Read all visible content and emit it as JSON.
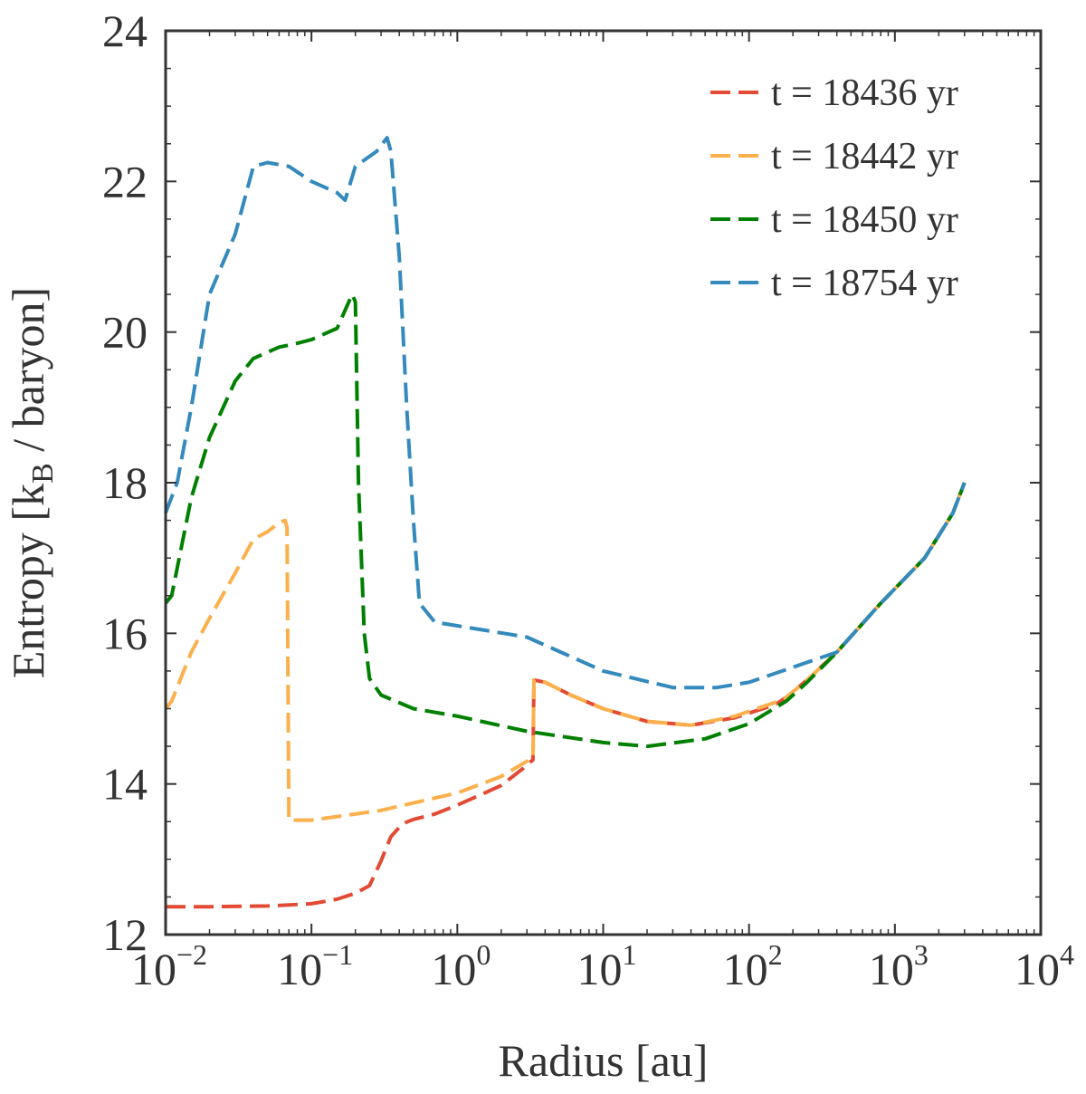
{
  "chart_data": {
    "type": "line",
    "title": "",
    "xlabel": "Radius [au]",
    "ylabel": {
      "prefix": "Entropy [k",
      "subscript": "B",
      "suffix": " / baryon]"
    },
    "xscale": "log",
    "xlim": [
      0.01,
      10000
    ],
    "ylim": [
      12,
      24
    ],
    "x_ticks": [
      {
        "value": 0.01,
        "base": "10",
        "exp": "−2"
      },
      {
        "value": 0.1,
        "base": "10",
        "exp": "−1"
      },
      {
        "value": 1,
        "base": "10",
        "exp": "0"
      },
      {
        "value": 10,
        "base": "10",
        "exp": "1"
      },
      {
        "value": 100,
        "base": "10",
        "exp": "2"
      },
      {
        "value": 1000,
        "base": "10",
        "exp": "3"
      },
      {
        "value": 10000,
        "base": "10",
        "exp": "4"
      }
    ],
    "y_ticks": [
      12,
      14,
      16,
      18,
      20,
      22,
      24
    ],
    "grid": false,
    "legend_position": "top-right",
    "series": [
      {
        "name": "t = 18436 yr",
        "color": "#e24a33",
        "points": [
          [
            0.01,
            12.37
          ],
          [
            0.02,
            12.37
          ],
          [
            0.05,
            12.38
          ],
          [
            0.1,
            12.41
          ],
          [
            0.15,
            12.47
          ],
          [
            0.2,
            12.55
          ],
          [
            0.25,
            12.65
          ],
          [
            0.3,
            12.98
          ],
          [
            0.35,
            13.3
          ],
          [
            0.42,
            13.47
          ],
          [
            0.5,
            13.53
          ],
          [
            0.7,
            13.6
          ],
          [
            1,
            13.72
          ],
          [
            1.5,
            13.87
          ],
          [
            2,
            13.98
          ],
          [
            2.8,
            14.2
          ],
          [
            3.2,
            14.3
          ],
          [
            3.3,
            14.32
          ],
          [
            3.35,
            15.38
          ],
          [
            4,
            15.35
          ],
          [
            6,
            15.18
          ],
          [
            10,
            15.0
          ],
          [
            20,
            14.83
          ],
          [
            40,
            14.78
          ],
          [
            80,
            14.88
          ],
          [
            150,
            15.05
          ],
          [
            180,
            15.15
          ],
          [
            250,
            15.38
          ],
          [
            400,
            15.75
          ],
          [
            800,
            16.4
          ],
          [
            1600,
            17.0
          ],
          [
            2500,
            17.6
          ],
          [
            3000,
            18.0
          ]
        ]
      },
      {
        "name": "t = 18442 yr",
        "color": "#fbb04c",
        "points": [
          [
            0.01,
            15.0
          ],
          [
            0.011,
            15.1
          ],
          [
            0.015,
            15.75
          ],
          [
            0.02,
            16.2
          ],
          [
            0.03,
            16.8
          ],
          [
            0.04,
            17.25
          ],
          [
            0.05,
            17.35
          ],
          [
            0.06,
            17.47
          ],
          [
            0.066,
            17.5
          ],
          [
            0.068,
            17.4
          ],
          [
            0.07,
            13.52
          ],
          [
            0.1,
            13.52
          ],
          [
            0.3,
            13.65
          ],
          [
            1,
            13.88
          ],
          [
            2,
            14.1
          ],
          [
            3.3,
            14.35
          ],
          [
            3.35,
            15.38
          ],
          [
            4,
            15.35
          ],
          [
            6,
            15.18
          ],
          [
            10,
            15.0
          ],
          [
            20,
            14.83
          ],
          [
            40,
            14.78
          ],
          [
            80,
            14.9
          ],
          [
            150,
            15.08
          ],
          [
            180,
            15.15
          ],
          [
            250,
            15.38
          ],
          [
            400,
            15.75
          ],
          [
            800,
            16.4
          ],
          [
            1600,
            17.0
          ],
          [
            2500,
            17.6
          ],
          [
            3000,
            18.0
          ]
        ]
      },
      {
        "name": "t = 18450 yr",
        "color": "#008000",
        "points": [
          [
            0.01,
            16.4
          ],
          [
            0.011,
            16.5
          ],
          [
            0.015,
            17.8
          ],
          [
            0.02,
            18.6
          ],
          [
            0.03,
            19.35
          ],
          [
            0.04,
            19.65
          ],
          [
            0.06,
            19.8
          ],
          [
            0.08,
            19.85
          ],
          [
            0.1,
            19.9
          ],
          [
            0.15,
            20.05
          ],
          [
            0.19,
            20.5
          ],
          [
            0.2,
            20.4
          ],
          [
            0.21,
            18.0
          ],
          [
            0.23,
            16.0
          ],
          [
            0.25,
            15.4
          ],
          [
            0.3,
            15.18
          ],
          [
            0.5,
            15.0
          ],
          [
            1,
            14.9
          ],
          [
            3,
            14.7
          ],
          [
            10,
            14.55
          ],
          [
            20,
            14.5
          ],
          [
            50,
            14.6
          ],
          [
            100,
            14.8
          ],
          [
            180,
            15.1
          ],
          [
            250,
            15.35
          ],
          [
            400,
            15.75
          ],
          [
            800,
            16.4
          ],
          [
            1600,
            17.0
          ],
          [
            2500,
            17.6
          ],
          [
            3000,
            18.0
          ]
        ]
      },
      {
        "name": "t = 18754 yr",
        "color": "#348abd",
        "points": [
          [
            0.01,
            17.6
          ],
          [
            0.012,
            18.0
          ],
          [
            0.015,
            19.0
          ],
          [
            0.02,
            20.5
          ],
          [
            0.03,
            21.3
          ],
          [
            0.04,
            22.2
          ],
          [
            0.05,
            22.25
          ],
          [
            0.07,
            22.2
          ],
          [
            0.1,
            22.0
          ],
          [
            0.15,
            21.85
          ],
          [
            0.17,
            21.75
          ],
          [
            0.2,
            22.2
          ],
          [
            0.28,
            22.4
          ],
          [
            0.33,
            22.58
          ],
          [
            0.35,
            22.4
          ],
          [
            0.4,
            21.0
          ],
          [
            0.45,
            19.0
          ],
          [
            0.5,
            17.5
          ],
          [
            0.55,
            16.4
          ],
          [
            0.7,
            16.15
          ],
          [
            1,
            16.1
          ],
          [
            3,
            15.95
          ],
          [
            10,
            15.5
          ],
          [
            30,
            15.28
          ],
          [
            60,
            15.28
          ],
          [
            100,
            15.35
          ],
          [
            200,
            15.55
          ],
          [
            400,
            15.75
          ],
          [
            800,
            16.4
          ],
          [
            1600,
            17.0
          ],
          [
            2500,
            17.6
          ],
          [
            3000,
            18.0
          ]
        ]
      }
    ]
  }
}
